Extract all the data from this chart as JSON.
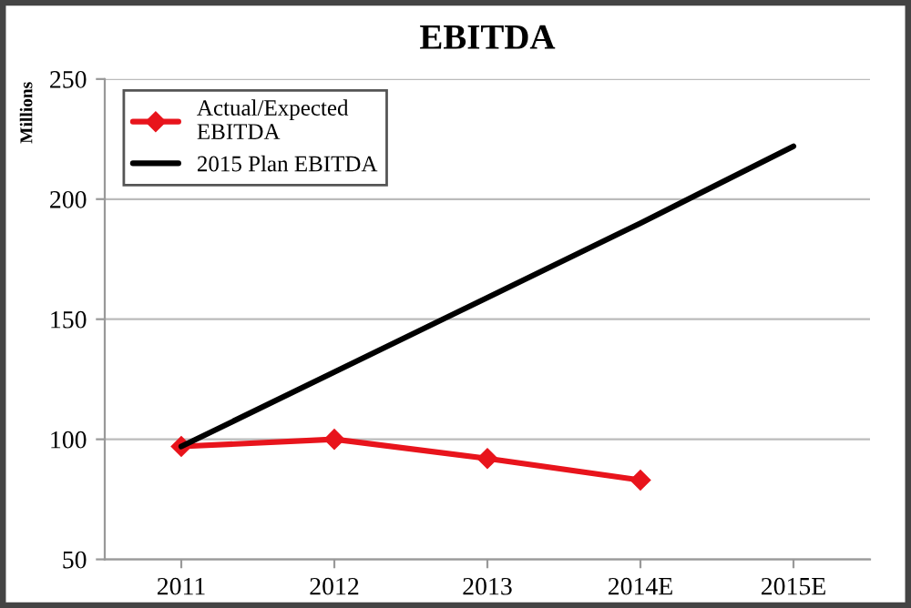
{
  "chart_data": {
    "type": "line",
    "title": "EBITDA",
    "ylabel": "Millions",
    "categories": [
      "2011",
      "2012",
      "2013",
      "2014E",
      "2015E"
    ],
    "series": [
      {
        "name": "Actual/Expected\nEBITDA",
        "color": "#e8141c",
        "values": [
          97,
          100,
          92,
          83,
          null
        ],
        "marker": "diamond"
      },
      {
        "name": "2015 Plan EBITDA",
        "color": "#000000",
        "values": [
          97,
          128,
          159,
          190,
          222
        ],
        "marker": "none"
      }
    ],
    "ylim": [
      50,
      250
    ],
    "yticks": [
      50,
      100,
      150,
      200,
      250
    ],
    "grid": "y",
    "legend": "top left"
  }
}
